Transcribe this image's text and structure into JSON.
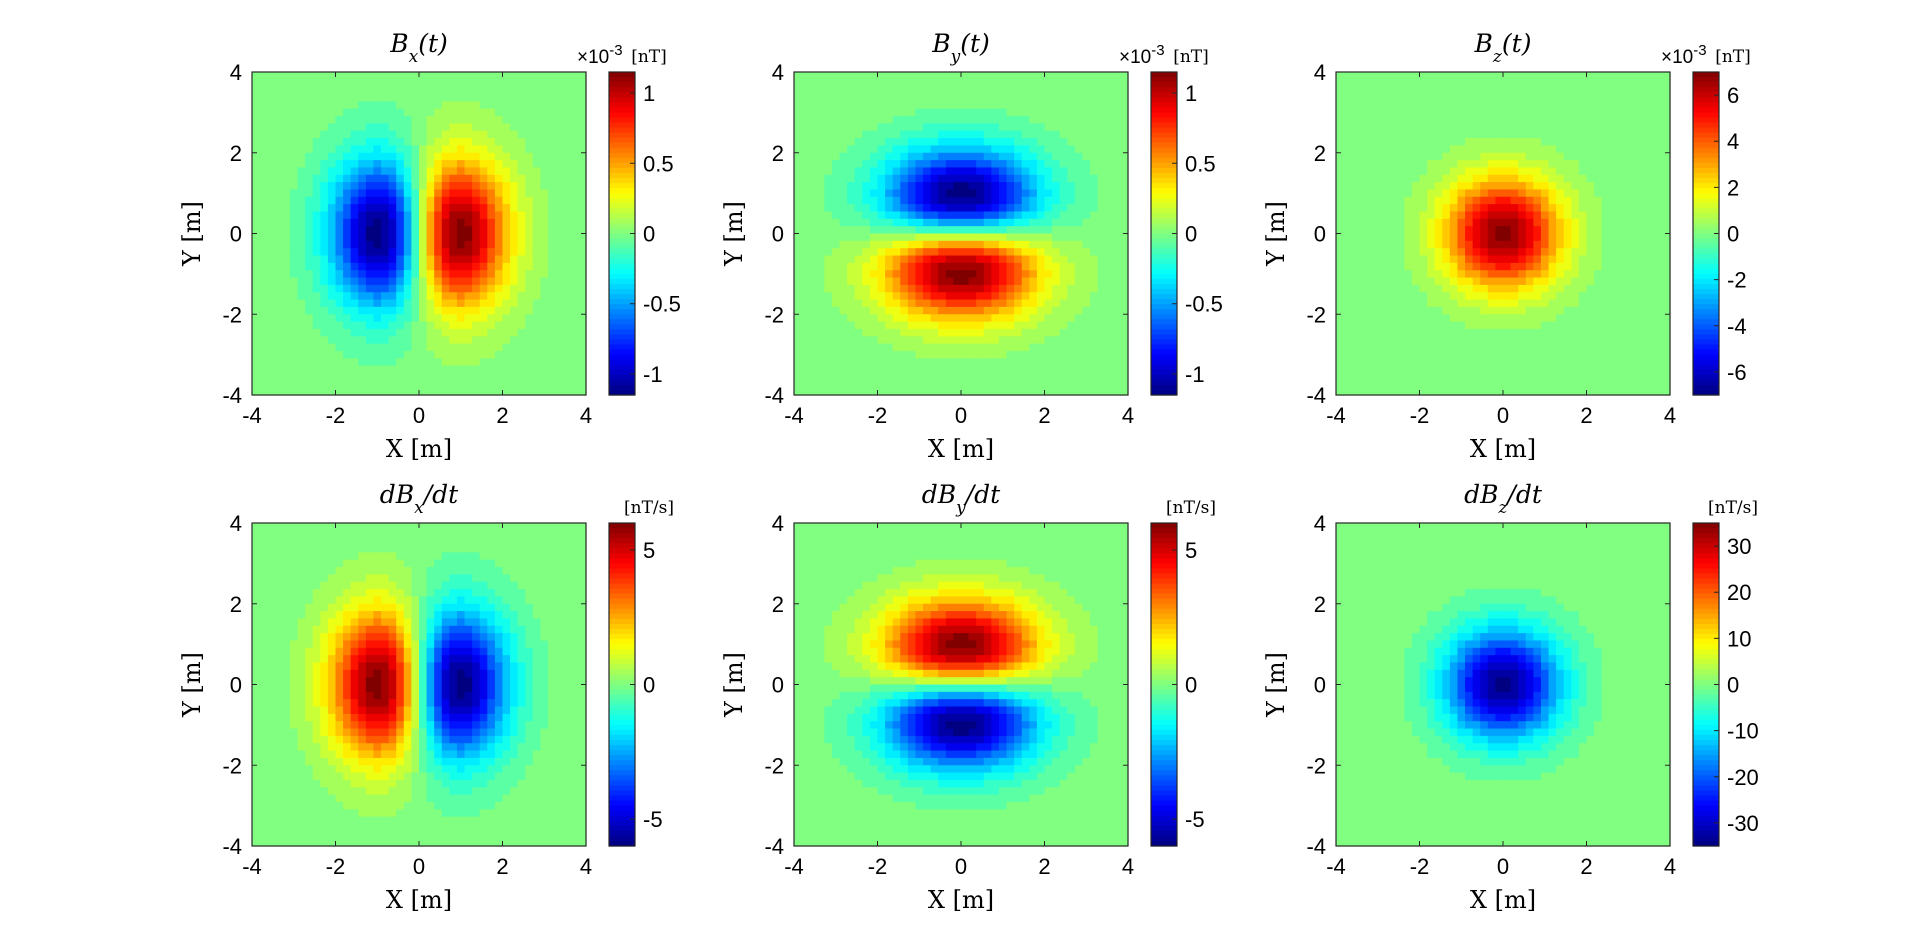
{
  "chart_data": [
    {
      "type": "heatmap",
      "title": "B_x(t)",
      "title_parts": {
        "base": "B",
        "sub": "x",
        "rest": "(t)"
      },
      "xlabel": "X [m]",
      "ylabel": "Y [m]",
      "xlim": [
        -4,
        4
      ],
      "ylim": [
        -4,
        4
      ],
      "xticks": [
        "-4",
        "-2",
        "0",
        "2",
        "4"
      ],
      "yticks": [
        "-4",
        "-2",
        "0",
        "2",
        "4"
      ],
      "field": {
        "kind": "dipole_x",
        "sign": 1,
        "peak_offset": 1.0,
        "scale": 1.0
      },
      "colorbar": {
        "label": "[nT]",
        "multiplier": "×10",
        "exponent": "-3",
        "range": [
          -1.15,
          1.15
        ],
        "ticks": [
          {
            "v": 1,
            "t": "1"
          },
          {
            "v": 0.5,
            "t": "0.5"
          },
          {
            "v": 0,
            "t": "0"
          },
          {
            "v": -0.5,
            "t": "-0.5"
          },
          {
            "v": -1,
            "t": "-1"
          }
        ]
      },
      "colormap": "jet"
    },
    {
      "type": "heatmap",
      "title": "B_y(t)",
      "title_parts": {
        "base": "B",
        "sub": "y",
        "rest": "(t)"
      },
      "xlabel": "X [m]",
      "ylabel": "Y [m]",
      "xlim": [
        -4,
        4
      ],
      "ylim": [
        -4,
        4
      ],
      "xticks": [
        "-4",
        "-2",
        "0",
        "2",
        "4"
      ],
      "yticks": [
        "-4",
        "-2",
        "0",
        "2",
        "4"
      ],
      "field": {
        "kind": "dipole_y",
        "sign": -1,
        "peak_offset": 1.0,
        "scale": 1.0
      },
      "colorbar": {
        "label": "[nT]",
        "multiplier": "×10",
        "exponent": "-3",
        "range": [
          -1.15,
          1.15
        ],
        "ticks": [
          {
            "v": 1,
            "t": "1"
          },
          {
            "v": 0.5,
            "t": "0.5"
          },
          {
            "v": 0,
            "t": "0"
          },
          {
            "v": -0.5,
            "t": "-0.5"
          },
          {
            "v": -1,
            "t": "-1"
          }
        ]
      },
      "colormap": "jet"
    },
    {
      "type": "heatmap",
      "title": "B_z(t)",
      "title_parts": {
        "base": "B",
        "sub": "z",
        "rest": "(t)"
      },
      "xlabel": "X [m]",
      "ylabel": "Y [m]",
      "xlim": [
        -4,
        4
      ],
      "ylim": [
        -4,
        4
      ],
      "xticks": [
        "-4",
        "-2",
        "0",
        "2",
        "4"
      ],
      "yticks": [
        "-4",
        "-2",
        "0",
        "2",
        "4"
      ],
      "field": {
        "kind": "gauss",
        "sign": 1,
        "peak_offset": 0,
        "scale": 1.0
      },
      "colorbar": {
        "label": "[nT]",
        "multiplier": "×10",
        "exponent": "-3",
        "range": [
          -7,
          7
        ],
        "ticks": [
          {
            "v": 6,
            "t": "6"
          },
          {
            "v": 4,
            "t": "4"
          },
          {
            "v": 2,
            "t": "2"
          },
          {
            "v": 0,
            "t": "0"
          },
          {
            "v": -2,
            "t": "-2"
          },
          {
            "v": -4,
            "t": "-4"
          },
          {
            "v": -6,
            "t": "-6"
          }
        ]
      },
      "colormap": "jet"
    },
    {
      "type": "heatmap",
      "title": "dB_x/dt",
      "title_parts": {
        "base": "dB",
        "sub": "x",
        "rest": "/dt"
      },
      "xlabel": "X [m]",
      "ylabel": "Y [m]",
      "xlim": [
        -4,
        4
      ],
      "ylim": [
        -4,
        4
      ],
      "xticks": [
        "-4",
        "-2",
        "0",
        "2",
        "4"
      ],
      "yticks": [
        "-4",
        "-2",
        "0",
        "2",
        "4"
      ],
      "field": {
        "kind": "dipole_x",
        "sign": -1,
        "peak_offset": 1.0,
        "scale": 1.0
      },
      "colorbar": {
        "label": "[nT/s]",
        "multiplier": "",
        "exponent": "",
        "range": [
          -6,
          6
        ],
        "ticks": [
          {
            "v": 5,
            "t": "5"
          },
          {
            "v": 0,
            "t": "0"
          },
          {
            "v": -5,
            "t": "-5"
          }
        ]
      },
      "colormap": "jet"
    },
    {
      "type": "heatmap",
      "title": "dB_y/dt",
      "title_parts": {
        "base": "dB",
        "sub": "y",
        "rest": "/dt"
      },
      "xlabel": "X [m]",
      "ylabel": "Y [m]",
      "xlim": [
        -4,
        4
      ],
      "ylim": [
        -4,
        4
      ],
      "xticks": [
        "-4",
        "-2",
        "0",
        "2",
        "4"
      ],
      "yticks": [
        "-4",
        "-2",
        "0",
        "2",
        "4"
      ],
      "field": {
        "kind": "dipole_y",
        "sign": 1,
        "peak_offset": 1.0,
        "scale": 1.0
      },
      "colorbar": {
        "label": "[nT/s]",
        "multiplier": "",
        "exponent": "",
        "range": [
          -6,
          6
        ],
        "ticks": [
          {
            "v": 5,
            "t": "5"
          },
          {
            "v": 0,
            "t": "0"
          },
          {
            "v": -5,
            "t": "-5"
          }
        ]
      },
      "colormap": "jet"
    },
    {
      "type": "heatmap",
      "title": "dB_z/dt",
      "title_parts": {
        "base": "dB",
        "sub": "z",
        "rest": "/dt"
      },
      "xlabel": "X [m]",
      "ylabel": "Y [m]",
      "xlim": [
        -4,
        4
      ],
      "ylim": [
        -4,
        4
      ],
      "xticks": [
        "-4",
        "-2",
        "0",
        "2",
        "4"
      ],
      "yticks": [
        "-4",
        "-2",
        "0",
        "2",
        "4"
      ],
      "field": {
        "kind": "gauss",
        "sign": -1,
        "peak_offset": 0,
        "scale": 1.0
      },
      "colorbar": {
        "label": "[nT/s]",
        "multiplier": "",
        "exponent": "",
        "range": [
          -35,
          35
        ],
        "ticks": [
          {
            "v": 30,
            "t": "30"
          },
          {
            "v": 20,
            "t": "20"
          },
          {
            "v": 10,
            "t": "10"
          },
          {
            "v": 0,
            "t": "0"
          },
          {
            "v": -10,
            "t": "-10"
          },
          {
            "v": -20,
            "t": "-20"
          },
          {
            "v": -30,
            "t": "-30"
          }
        ]
      },
      "colormap": "jet"
    }
  ]
}
